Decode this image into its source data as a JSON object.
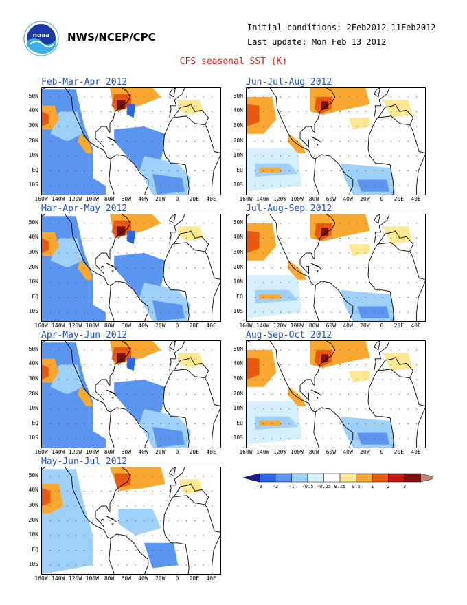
{
  "header": {
    "agency": "NWS/NCEP/CPC",
    "initial_conditions": "Initial conditions: 2Feb2012-11Feb2012",
    "last_update": "Last update: Mon Feb 13 2012",
    "plot_title": "CFS seasonal SST (K)"
  },
  "logo": {
    "name": "noaa-logo",
    "text": "noaa"
  },
  "panels": [
    {
      "title": "Feb-Mar-Apr 2012"
    },
    {
      "title": "Jun-Jul-Aug 2012"
    },
    {
      "title": "Mar-Apr-May 2012"
    },
    {
      "title": "Jul-Aug-Sep 2012"
    },
    {
      "title": "Apr-May-Jun 2012"
    },
    {
      "title": "Aug-Sep-Oct 2012"
    },
    {
      "title": "May-Jun-Jul 2012"
    }
  ],
  "axes": {
    "lon_labels": [
      "160W",
      "140W",
      "120W",
      "100W",
      "80W",
      "60W",
      "40W",
      "20W",
      "0",
      "20E",
      "40E"
    ],
    "lat_labels": [
      "50N",
      "40N",
      "30N",
      "20N",
      "10N",
      "EQ",
      "10S"
    ]
  },
  "legend": {
    "levels": [
      "-3",
      "-2",
      "-1",
      "-0.5",
      "-0.25",
      "0.25",
      "0.5",
      "1",
      "2",
      "3"
    ],
    "colors": [
      "#1a1aa0",
      "#2a66e0",
      "#5a96f0",
      "#9ed0f8",
      "#d6f0fb",
      "#ffffff",
      "#fbe890",
      "#f8a830",
      "#e85a10",
      "#c01810",
      "#801010",
      "#c08878"
    ]
  }
}
